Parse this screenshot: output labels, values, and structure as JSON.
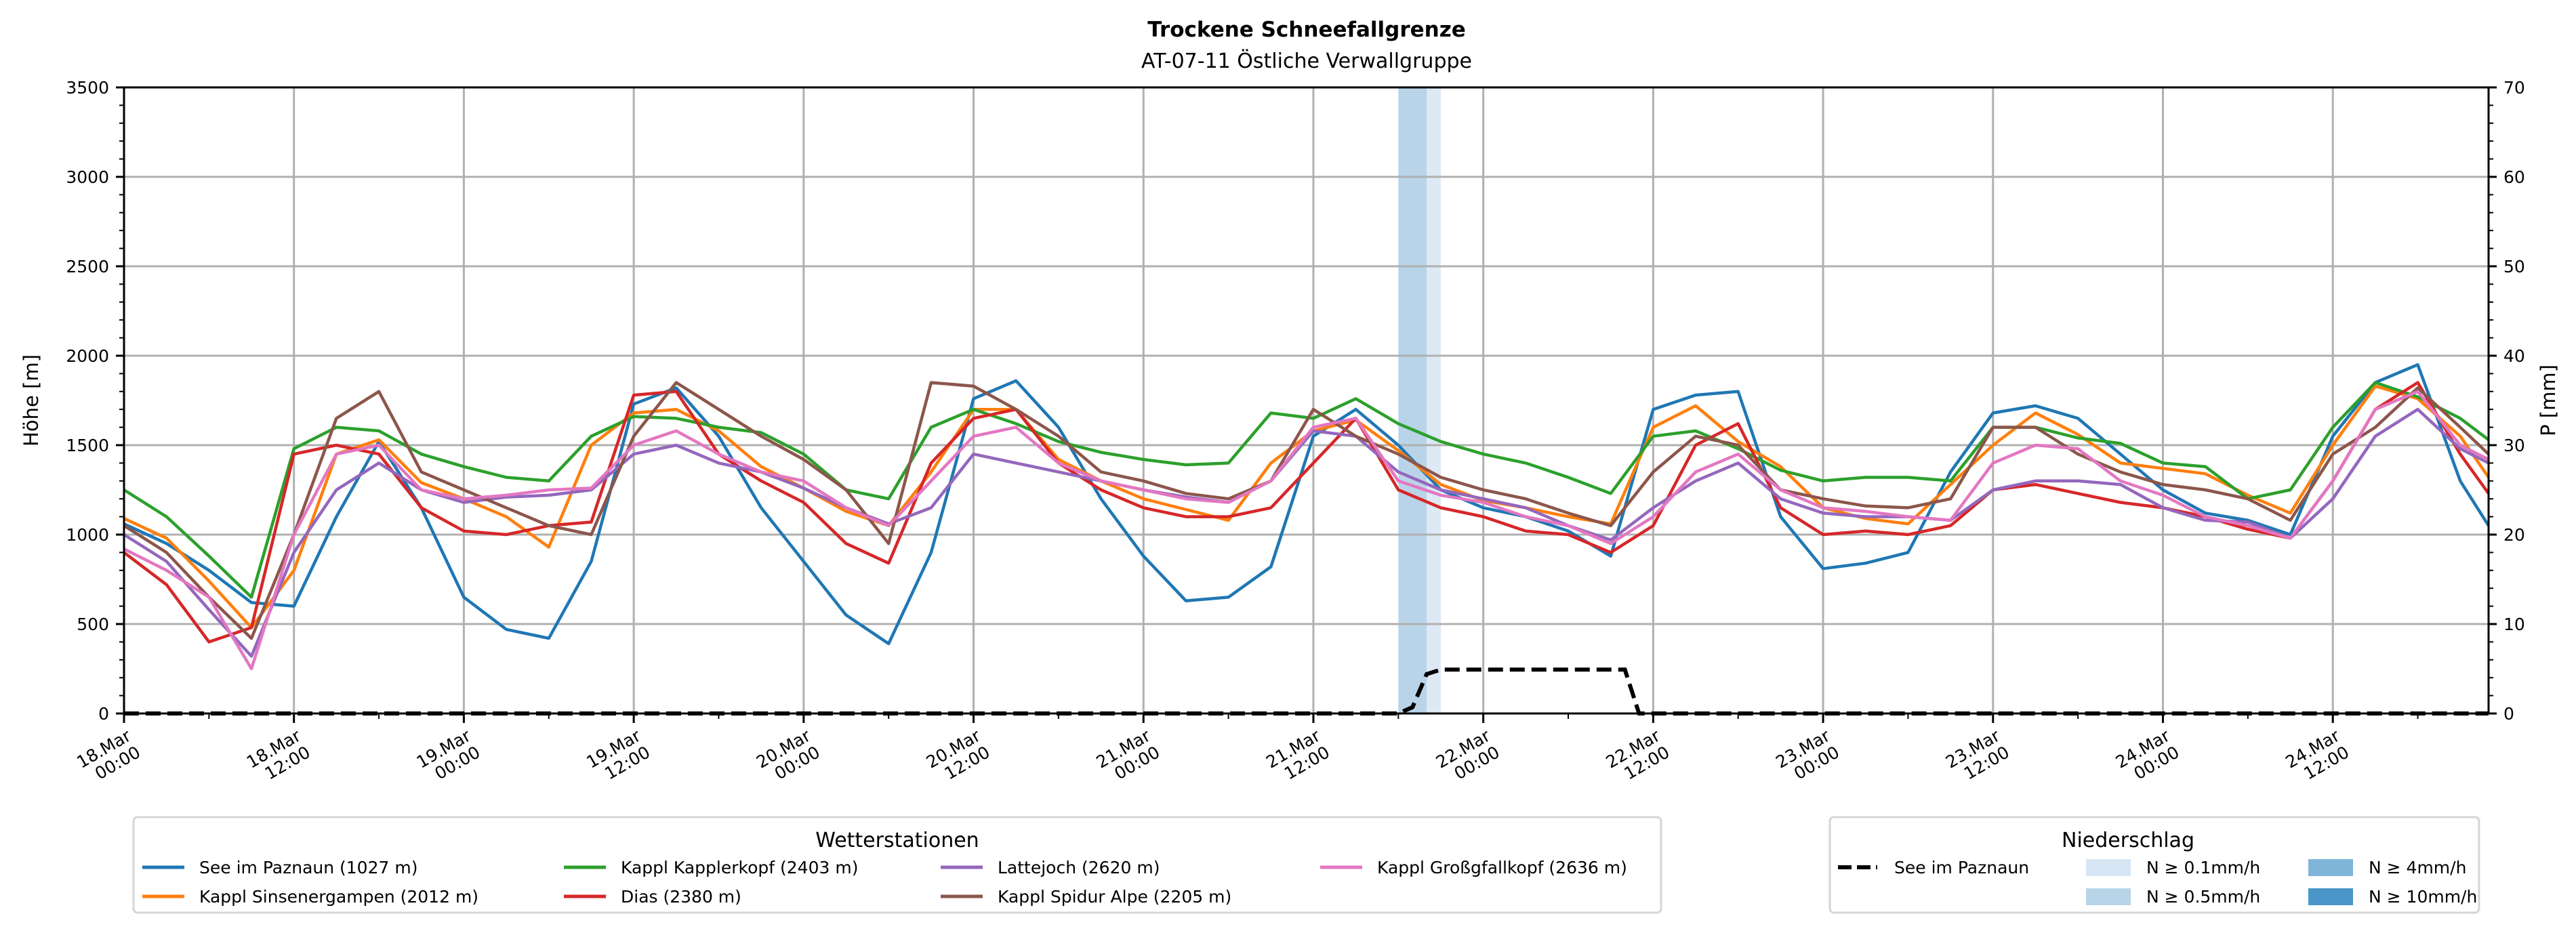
{
  "chart_data": {
    "type": "line",
    "title": "Trockene Schneefallgrenze",
    "subtitle": "AT-07-11 Östliche Verwallgruppe",
    "ylabel": "Höhe [m]",
    "ylabel_right": "P [mm]",
    "ylim": [
      0,
      3500
    ],
    "ylim_right": [
      0,
      70
    ],
    "yticks": [
      0,
      500,
      1000,
      1500,
      2000,
      2500,
      3000,
      3500
    ],
    "yticks_right": [
      0,
      10,
      20,
      30,
      40,
      50,
      60,
      70
    ],
    "xlim_hours": [
      0,
      167
    ],
    "x_unit": "hours since 18.Mar 00:00",
    "grid": true,
    "xticks": [
      {
        "hour": 0,
        "label": [
          "18.Mar",
          "00:00"
        ]
      },
      {
        "hour": 12,
        "label": [
          "18.Mar",
          "12:00"
        ]
      },
      {
        "hour": 24,
        "label": [
          "19.Mar",
          "00:00"
        ]
      },
      {
        "hour": 36,
        "label": [
          "19.Mar",
          "12:00"
        ]
      },
      {
        "hour": 48,
        "label": [
          "20.Mar",
          "00:00"
        ]
      },
      {
        "hour": 60,
        "label": [
          "20.Mar",
          "12:00"
        ]
      },
      {
        "hour": 72,
        "label": [
          "21.Mar",
          "00:00"
        ]
      },
      {
        "hour": 84,
        "label": [
          "21.Mar",
          "12:00"
        ]
      },
      {
        "hour": 96,
        "label": [
          "22.Mar",
          "00:00"
        ]
      },
      {
        "hour": 108,
        "label": [
          "22.Mar",
          "12:00"
        ]
      },
      {
        "hour": 120,
        "label": [
          "23.Mar",
          "00:00"
        ]
      },
      {
        "hour": 132,
        "label": [
          "23.Mar",
          "12:00"
        ]
      },
      {
        "hour": 144,
        "label": [
          "24.Mar",
          "00:00"
        ]
      },
      {
        "hour": 156,
        "label": [
          "24.Mar",
          "12:00"
        ]
      }
    ],
    "x": [
      0,
      3,
      6,
      9,
      12,
      15,
      18,
      21,
      24,
      27,
      30,
      33,
      36,
      39,
      42,
      45,
      48,
      51,
      54,
      57,
      60,
      63,
      66,
      69,
      72,
      75,
      78,
      81,
      84,
      87,
      90,
      93,
      96,
      99,
      102,
      105,
      108,
      111,
      114,
      117,
      120,
      123,
      126,
      129,
      132,
      135,
      138,
      141,
      144,
      147,
      150,
      153,
      156,
      159,
      162,
      165,
      167
    ],
    "series": [
      {
        "name": "See im Paznaun (1027 m)",
        "color": "#1f77b4",
        "values": [
          1060,
          950,
          800,
          620,
          600,
          1100,
          1520,
          1150,
          650,
          470,
          420,
          850,
          1730,
          1820,
          1550,
          1150,
          850,
          550,
          390,
          900,
          1760,
          1860,
          1600,
          1200,
          880,
          630,
          650,
          820,
          1550,
          1700,
          1500,
          1250,
          1150,
          1100,
          1020,
          880,
          1700,
          1780,
          1800,
          1100,
          810,
          840,
          900,
          1350,
          1680,
          1720,
          1650,
          1450,
          1250,
          1120,
          1080,
          1000,
          1550,
          1850,
          1950,
          1300,
          1050
        ]
      },
      {
        "name": "Kappl Sinsenergampen (2012 m)",
        "color": "#ff7f0e",
        "values": [
          1090,
          980,
          740,
          480,
          800,
          1450,
          1530,
          1290,
          1200,
          1100,
          930,
          1500,
          1680,
          1700,
          1580,
          1380,
          1260,
          1130,
          1050,
          1350,
          1700,
          1700,
          1420,
          1300,
          1200,
          1140,
          1080,
          1400,
          1580,
          1640,
          1470,
          1280,
          1190,
          1150,
          1100,
          1060,
          1600,
          1720,
          1520,
          1380,
          1150,
          1090,
          1060,
          1280,
          1500,
          1680,
          1560,
          1400,
          1370,
          1340,
          1220,
          1120,
          1500,
          1830,
          1760,
          1550,
          1320
        ]
      },
      {
        "name": "Kappl Kapplerkopf (2403 m)",
        "color": "#2ca02c",
        "values": [
          1250,
          1100,
          880,
          650,
          1480,
          1600,
          1580,
          1450,
          1380,
          1320,
          1300,
          1550,
          1660,
          1650,
          1600,
          1570,
          1450,
          1250,
          1200,
          1600,
          1700,
          1620,
          1520,
          1460,
          1420,
          1390,
          1400,
          1680,
          1650,
          1760,
          1620,
          1520,
          1450,
          1400,
          1320,
          1230,
          1550,
          1580,
          1480,
          1360,
          1300,
          1320,
          1320,
          1300,
          1600,
          1600,
          1540,
          1510,
          1400,
          1380,
          1200,
          1250,
          1600,
          1850,
          1770,
          1650,
          1530
        ]
      },
      {
        "name": "Dias (2380 m)",
        "color": "#d62728",
        "values": [
          900,
          720,
          400,
          480,
          1450,
          1500,
          1450,
          1150,
          1020,
          1000,
          1050,
          1070,
          1780,
          1800,
          1450,
          1300,
          1180,
          950,
          840,
          1400,
          1650,
          1700,
          1400,
          1250,
          1150,
          1100,
          1100,
          1150,
          1400,
          1650,
          1250,
          1150,
          1100,
          1020,
          1000,
          900,
          1050,
          1500,
          1620,
          1150,
          1000,
          1020,
          1000,
          1050,
          1250,
          1280,
          1230,
          1180,
          1150,
          1100,
          1030,
          980,
          1300,
          1700,
          1850,
          1450,
          1230
        ]
      },
      {
        "name": "Lattejoch (2620 m)",
        "color": "#9467bd",
        "values": [
          1000,
          850,
          580,
          320,
          900,
          1250,
          1400,
          1250,
          1180,
          1210,
          1220,
          1250,
          1450,
          1500,
          1400,
          1350,
          1260,
          1150,
          1060,
          1150,
          1450,
          1400,
          1350,
          1300,
          1250,
          1210,
          1180,
          1300,
          1580,
          1550,
          1350,
          1250,
          1200,
          1150,
          1050,
          970,
          1150,
          1300,
          1400,
          1200,
          1120,
          1100,
          1100,
          1080,
          1250,
          1300,
          1300,
          1280,
          1150,
          1080,
          1070,
          980,
          1200,
          1550,
          1700,
          1480,
          1400
        ]
      },
      {
        "name": "Kappl Spidur Alpe (2205 m)",
        "color": "#8c564b",
        "values": [
          1050,
          900,
          650,
          420,
          1000,
          1650,
          1800,
          1350,
          1250,
          1150,
          1050,
          1000,
          1550,
          1850,
          1700,
          1550,
          1420,
          1250,
          950,
          1850,
          1830,
          1700,
          1550,
          1350,
          1300,
          1230,
          1200,
          1300,
          1700,
          1550,
          1450,
          1320,
          1250,
          1200,
          1120,
          1050,
          1350,
          1550,
          1500,
          1250,
          1200,
          1160,
          1150,
          1200,
          1600,
          1600,
          1450,
          1350,
          1280,
          1250,
          1200,
          1080,
          1450,
          1600,
          1820,
          1600,
          1450
        ]
      },
      {
        "name": "Kappl Großgfallkopf (2636 m)",
        "color": "#e377c2",
        "values": [
          920,
          800,
          650,
          250,
          1000,
          1450,
          1500,
          1250,
          1200,
          1220,
          1250,
          1260,
          1500,
          1580,
          1450,
          1350,
          1300,
          1150,
          1050,
          1300,
          1550,
          1600,
          1400,
          1300,
          1250,
          1200,
          1180,
          1300,
          1600,
          1650,
          1300,
          1220,
          1180,
          1100,
          1050,
          950,
          1100,
          1350,
          1450,
          1250,
          1150,
          1130,
          1100,
          1080,
          1400,
          1500,
          1480,
          1300,
          1220,
          1100,
          1050,
          980,
          1300,
          1700,
          1800,
          1500,
          1420
        ]
      }
    ],
    "precipitation": {
      "name": "See im Paznaun",
      "axis": "right",
      "style": "dashed",
      "color": "#000000",
      "x": [
        0,
        90,
        91,
        92,
        93,
        106,
        107,
        167
      ],
      "values": [
        0,
        0,
        0.7,
        4.4,
        4.9,
        4.9,
        0,
        0
      ]
    },
    "precip_bands": [
      {
        "from_hour": 90,
        "to_hour": 92,
        "level": "N ≥ 0.5mm/h",
        "color": "#b9d4e9"
      },
      {
        "from_hour": 92,
        "to_hour": 93,
        "level": "N ≥ 0.1mm/h",
        "color": "#dde9f5"
      }
    ],
    "legend_stations": {
      "title": "Wetterstationen",
      "position": "bottom-left",
      "columns": [
        [
          "See im Paznaun (1027 m)",
          "Kappl Sinsenergampen (2012 m)"
        ],
        [
          "Kappl Kapplerkopf (2403 m)",
          "Dias (2380 m)"
        ],
        [
          "Lattejoch (2620 m)",
          "Kappl Spidur Alpe (2205 m)"
        ],
        [
          "Kappl Großgfallkopf (2636 m)"
        ]
      ]
    },
    "legend_precip": {
      "title": "Niederschlag",
      "position": "bottom-right",
      "line_label": "See im Paznaun",
      "levels": [
        {
          "label": "N ≥ 0.1mm/h",
          "color": "#d6e6f4"
        },
        {
          "label": "N ≥ 0.5mm/h",
          "color": "#b8d4e8"
        },
        {
          "label": "N ≥ 4mm/h",
          "color": "#7fb5d9"
        },
        {
          "label": "N ≥ 10mm/h",
          "color": "#4a96c9"
        }
      ]
    }
  }
}
